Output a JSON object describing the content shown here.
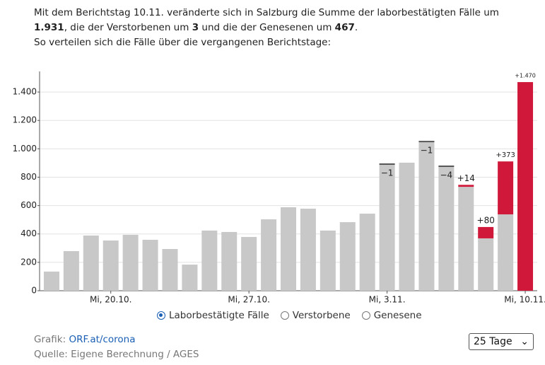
{
  "header": {
    "parts": [
      "Mit dem Berichtstag 10.11. veränderte sich in Salzburg die Summe der laborbestätigten Fälle um ",
      "1.931",
      ", die der Verstorbenen um ",
      "3",
      " und die der Genesenen um ",
      "467",
      "."
    ],
    "subline": "So verteilen sich die Fälle über die vergangenen Berichtstage:"
  },
  "chart_data": {
    "type": "stacked-bar",
    "categories": [
      null,
      null,
      null,
      "Mi, 20.10.",
      null,
      null,
      null,
      null,
      null,
      null,
      "Mi, 27.10.",
      null,
      null,
      null,
      null,
      null,
      null,
      "Mi, 3.11.",
      null,
      null,
      null,
      null,
      null,
      null,
      "Mi, 10.11."
    ],
    "series": [
      {
        "color": "#c8c8c8",
        "values": [
          135,
          279,
          389,
          354,
          394,
          359,
          294,
          184,
          424,
          414,
          379,
          503,
          588,
          578,
          424,
          483,
          543,
          887,
          902,
          1046,
          872,
          732,
          369,
          538,
          null
        ]
      },
      {
        "color": "#d0193a",
        "values": [
          null,
          null,
          null,
          null,
          null,
          null,
          null,
          null,
          null,
          null,
          null,
          null,
          null,
          null,
          null,
          null,
          null,
          -1,
          null,
          -1,
          -4,
          14,
          80,
          373,
          1470
        ],
        "value_labels": [
          null,
          null,
          null,
          null,
          null,
          null,
          null,
          null,
          null,
          null,
          null,
          null,
          null,
          null,
          null,
          null,
          null,
          "−1",
          null,
          "−1",
          "−4",
          "+14",
          "+80",
          "+373",
          "+1.470"
        ]
      }
    ],
    "ylim": [
      0,
      1545
    ],
    "yticks": [
      0,
      200,
      400,
      600,
      800,
      {
        "value": 1000,
        "label": "1.000"
      },
      {
        "value": 1200,
        "label": "1.200"
      },
      {
        "value": 1400,
        "label": "1.400"
      }
    ],
    "grid": true
  },
  "legend_options": {
    "items": [
      "Laborbestätigte Fälle",
      "Verstorbene",
      "Genesene"
    ],
    "selected": 0
  },
  "footer": {
    "graphic_prefix": "Grafik: ",
    "graphic_link": "ORF.at/corona",
    "source": "Quelle: Eigene Berechnung / AGES"
  },
  "range_select": "25 Tage"
}
